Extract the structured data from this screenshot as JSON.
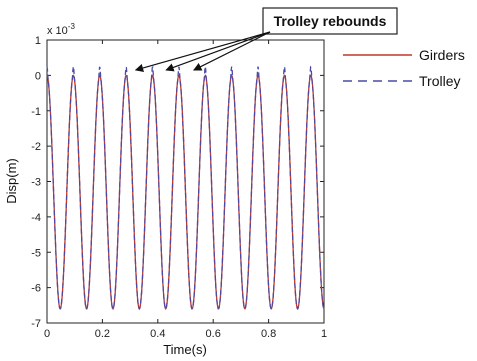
{
  "chart_data": {
    "type": "line",
    "title": "",
    "xlabel": "Time(s)",
    "ylabel": "Disp(m)",
    "y_scale_label": "x 10",
    "y_scale_exponent": "-3",
    "xlim": [
      0,
      1
    ],
    "ylim": [
      -7,
      1
    ],
    "x_ticks": [
      "0",
      "0.2",
      "0.4",
      "0.6",
      "0.8",
      "1"
    ],
    "y_ticks": [
      "1",
      "0",
      "-1",
      "-2",
      "-3",
      "-4",
      "-5",
      "-6",
      "-7"
    ],
    "legend_position": "top-right, outside plot",
    "grid": false,
    "series": [
      {
        "name": "Girders",
        "color": "#c0392b",
        "dash": "solid",
        "description_values": "oscillation between 0 and -6.6e-3 m, about 10.5 cycles",
        "min": -6.6,
        "max": 0.0,
        "cycles": 10.5
      },
      {
        "name": "Trolley",
        "color": "#4a4aa8",
        "dash": "dashed",
        "min": -6.6,
        "max": 0.25,
        "cycles": 10.5
      }
    ],
    "annotation": {
      "text": "Trolley rebounds",
      "targets_x": [
        0.32,
        0.43,
        0.53
      ]
    }
  }
}
